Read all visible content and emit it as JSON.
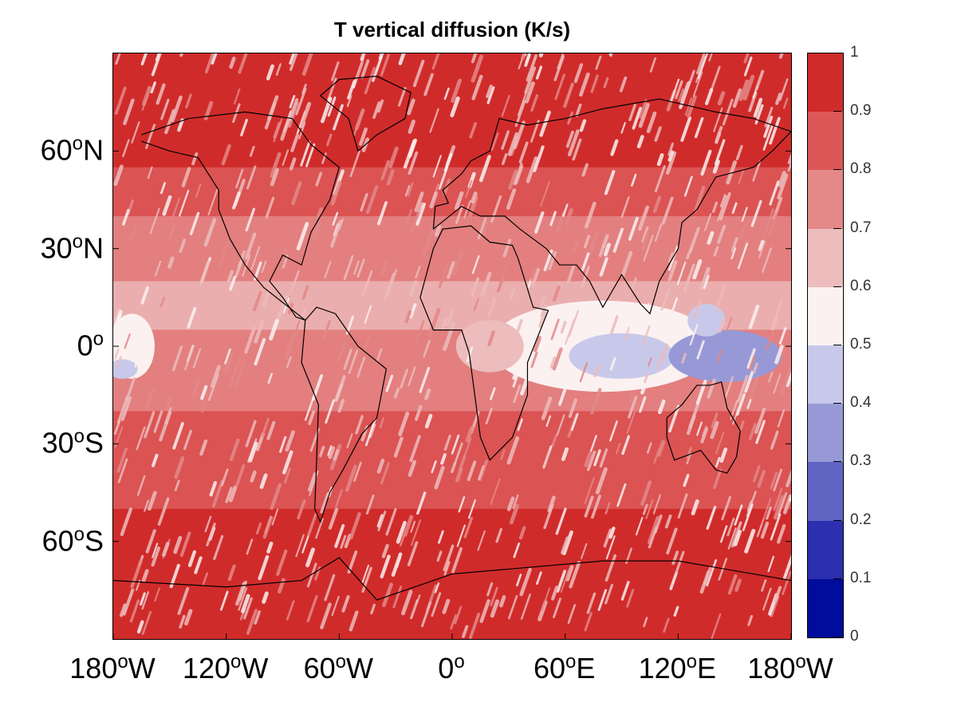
{
  "title": "T vertical diffusion (K/s)",
  "map": {
    "projection": "equirectangular",
    "lon_range": [
      -180,
      180
    ],
    "lat_range": [
      -90,
      90
    ],
    "lat_ticks": [
      {
        "value": 60,
        "deg": "60",
        "dir": "N"
      },
      {
        "value": 30,
        "deg": "30",
        "dir": "N"
      },
      {
        "value": 0,
        "deg": "0",
        "dir": ""
      },
      {
        "value": -30,
        "deg": "30",
        "dir": "S"
      },
      {
        "value": -60,
        "deg": "60",
        "dir": "S"
      }
    ],
    "lon_ticks": [
      {
        "value": -180,
        "deg": "180",
        "dir": "W"
      },
      {
        "value": -120,
        "deg": "120",
        "dir": "W"
      },
      {
        "value": -60,
        "deg": "60",
        "dir": "W"
      },
      {
        "value": 0,
        "deg": "0",
        "dir": ""
      },
      {
        "value": 60,
        "deg": "60",
        "dir": "E"
      },
      {
        "value": 120,
        "deg": "120",
        "dir": "E"
      },
      {
        "value": 180,
        "deg": "180",
        "dir": "W"
      }
    ],
    "background_level": 0.95,
    "bands": [
      {
        "lat_top": 55,
        "lat_bot": 40,
        "level": 0.85
      },
      {
        "lat_top": 40,
        "lat_bot": 20,
        "level": 0.75
      },
      {
        "lat_top": 20,
        "lat_bot": 5,
        "level": 0.65
      },
      {
        "lat_top": 5,
        "lat_bot": -20,
        "level": 0.7
      },
      {
        "lat_top": -20,
        "lat_bot": -50,
        "level": 0.8
      }
    ],
    "blue_patches": [
      {
        "lon": 90,
        "lat": -3,
        "rx": 28,
        "ry": 7,
        "level": 0.4
      },
      {
        "lon": 145,
        "lat": -3,
        "rx": 30,
        "ry": 8,
        "level": 0.35
      },
      {
        "lon": 135,
        "lat": 8,
        "rx": 10,
        "ry": 5,
        "level": 0.4
      },
      {
        "lon": -175,
        "lat": -7,
        "rx": 8,
        "ry": 3,
        "level": 0.45
      }
    ],
    "white_patches": [
      {
        "lon": 80,
        "lat": 0,
        "rx": 60,
        "ry": 14,
        "level": 0.55
      },
      {
        "lon": -170,
        "lat": 0,
        "rx": 12,
        "ry": 10,
        "level": 0.55
      },
      {
        "lon": 20,
        "lat": 0,
        "rx": 18,
        "ry": 8,
        "level": 0.6
      }
    ]
  },
  "colorbar": {
    "ticks": [
      "0",
      "0.1",
      "0.2",
      "0.3",
      "0.4",
      "0.5",
      "0.6",
      "0.7",
      "0.8",
      "0.9",
      "1"
    ],
    "levels": [
      {
        "min": 0.0,
        "max": 0.1,
        "color": "#000c9b"
      },
      {
        "min": 0.1,
        "max": 0.2,
        "color": "#2c2fae"
      },
      {
        "min": 0.2,
        "max": 0.3,
        "color": "#6064c3"
      },
      {
        "min": 0.3,
        "max": 0.4,
        "color": "#9799d6"
      },
      {
        "min": 0.4,
        "max": 0.5,
        "color": "#c8c9ea"
      },
      {
        "min": 0.5,
        "max": 0.6,
        "color": "#fbf1f1"
      },
      {
        "min": 0.6,
        "max": 0.7,
        "color": "#edbcbc"
      },
      {
        "min": 0.7,
        "max": 0.8,
        "color": "#e48888"
      },
      {
        "min": 0.8,
        "max": 0.9,
        "color": "#dc5858"
      },
      {
        "min": 0.9,
        "max": 1.0,
        "color": "#d02b2b"
      }
    ]
  }
}
